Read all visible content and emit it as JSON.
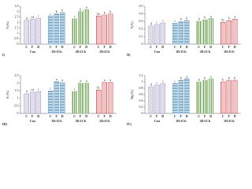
{
  "chart_data": [
    {
      "type": "bar",
      "panel": "I)",
      "y_label": "N (%)",
      "subcategories": [
        "C",
        "F",
        "D"
      ],
      "ylim": [
        0,
        3.5
      ],
      "yticks": [
        0,
        0.5,
        1,
        1.5,
        2,
        2.5,
        3,
        3.5
      ],
      "series": [
        {
          "name": "Con",
          "color": "#8a7cc4",
          "pattern": "hatch",
          "values": [
            2.2,
            2.3,
            2.4
          ],
          "letters": [
            "d",
            "cd",
            "c"
          ]
        },
        {
          "name": "1D:1Ch",
          "color": "#4a90d9",
          "pattern": "hstripe",
          "values": [
            2.6,
            2.8,
            2.9
          ],
          "letters": [
            "c",
            "b",
            "b"
          ]
        },
        {
          "name": "2D:1Ch",
          "color": "#6aa84f",
          "pattern": "vstripe",
          "values": [
            2.35,
            3.0,
            3.2
          ],
          "letters": [
            "c",
            "b",
            "a"
          ]
        },
        {
          "name": "1D:2Ch",
          "color": "#cc3333",
          "pattern": "dots",
          "values": [
            2.6,
            2.7,
            2.8
          ],
          "letters": [
            "bc",
            "b",
            "b"
          ]
        }
      ]
    },
    {
      "type": "bar",
      "panel": "II)",
      "y_label": "P (%)",
      "subcategories": [
        "C",
        "F",
        "D"
      ],
      "ylim": [
        0,
        0.5
      ],
      "yticks": [
        0,
        0.1,
        0.2,
        0.3,
        0.4,
        0.5
      ],
      "series": [
        {
          "name": "Con",
          "color": "#8a7cc4",
          "pattern": "hatch",
          "values": [
            0.24,
            0.26,
            0.28
          ],
          "letters": [
            "d",
            "c",
            "c"
          ]
        },
        {
          "name": "1D:1Ch",
          "color": "#4a90d9",
          "pattern": "hstripe",
          "values": [
            0.28,
            0.3,
            0.31
          ],
          "letters": [
            "c",
            "b",
            "b"
          ]
        },
        {
          "name": "2D:1Ch",
          "color": "#6aa84f",
          "pattern": "vstripe",
          "values": [
            0.3,
            0.32,
            0.34
          ],
          "letters": [
            "b",
            "b",
            "a"
          ]
        },
        {
          "name": "1D:2Ch",
          "color": "#cc3333",
          "pattern": "dots",
          "values": [
            0.29,
            0.31,
            0.33
          ],
          "letters": [
            "bc",
            "b",
            "a"
          ]
        }
      ]
    },
    {
      "type": "bar",
      "panel": "III)",
      "y_label": "K (%)",
      "subcategories": [
        "C",
        "F",
        "D"
      ],
      "ylim": [
        0,
        2.5
      ],
      "yticks": [
        0,
        0.5,
        1,
        1.5,
        2,
        2.5
      ],
      "series": [
        {
          "name": "Con",
          "color": "#8a7cc4",
          "pattern": "hatch",
          "values": [
            1.3,
            1.4,
            1.45
          ],
          "letters": [
            "d",
            "cd",
            "c"
          ]
        },
        {
          "name": "1D:1Ch",
          "color": "#4a90d9",
          "pattern": "hstripe",
          "values": [
            1.5,
            2.1,
            2.05
          ],
          "letters": [
            "c",
            "a",
            "a"
          ]
        },
        {
          "name": "2D:1Ch",
          "color": "#6aa84f",
          "pattern": "vstripe",
          "values": [
            1.45,
            2.0,
            2.0
          ],
          "letters": [
            "c",
            "a",
            "a"
          ]
        },
        {
          "name": "1D:2Ch",
          "color": "#cc3333",
          "pattern": "dots",
          "values": [
            1.55,
            2.05,
            2.05
          ],
          "letters": [
            "bc",
            "a",
            "a"
          ]
        }
      ]
    },
    {
      "type": "bar",
      "panel": "IV)",
      "y_label": "Mg (%)",
      "subcategories": [
        "C",
        "F",
        "D"
      ],
      "ylim": [
        0,
        1.2
      ],
      "yticks": [
        0,
        0.2,
        0.4,
        0.6,
        0.8,
        1,
        1.2
      ],
      "series": [
        {
          "name": "Con",
          "color": "#8a7cc4",
          "pattern": "hatch",
          "values": [
            0.85,
            0.9,
            0.95
          ],
          "letters": [
            "d",
            "c",
            "c"
          ]
        },
        {
          "name": "1D:1Ch",
          "color": "#4a90d9",
          "pattern": "hstripe",
          "values": [
            0.95,
            1.05,
            1.1
          ],
          "letters": [
            "c",
            "b",
            "a"
          ]
        },
        {
          "name": "2D:1Ch",
          "color": "#6aa84f",
          "pattern": "vstripe",
          "values": [
            1.0,
            1.05,
            1.1
          ],
          "letters": [
            "b",
            "b",
            "a"
          ]
        },
        {
          "name": "1D:2Ch",
          "color": "#cc3333",
          "pattern": "dots",
          "values": [
            1.0,
            1.05,
            1.05
          ],
          "letters": [
            "b",
            "b",
            "b"
          ]
        }
      ]
    }
  ]
}
